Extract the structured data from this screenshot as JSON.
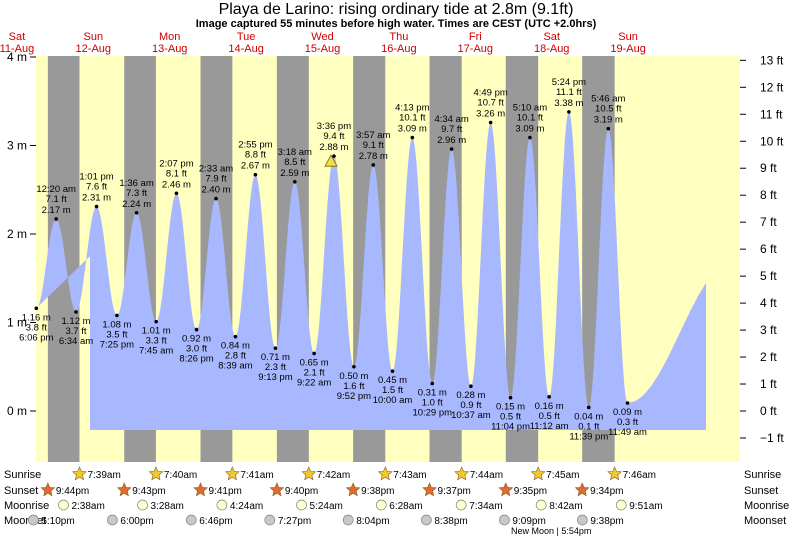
{
  "header": {
    "title": "Playa de Larino: rising  ordinary tide at 2.8m (9.1ft)",
    "subtitle": "Image captured 55 minutes before high water. Times are CEST (UTC +2.0hrs)"
  },
  "colors": {
    "day": "#ffffc0",
    "night": "#999999",
    "water": "#a8b8ff"
  },
  "chart_data": {
    "type": "area",
    "title": "Playa de Larino: rising  ordinary tide at 2.8m (9.1ft)",
    "left_axis": {
      "unit": "m",
      "range": [
        -0.45,
        4.0
      ],
      "ticks": [
        {
          "v": 4,
          "label": "4 m"
        },
        {
          "v": 3,
          "label": "3 m"
        },
        {
          "v": 2,
          "label": "2 m"
        },
        {
          "v": 1,
          "label": "1 m"
        },
        {
          "v": 0,
          "label": "0 m"
        }
      ]
    },
    "right_axis": {
      "unit": "ft",
      "ticks": [
        "13 ft",
        "12 ft",
        "11 ft",
        "10 ft",
        "9 ft",
        "8 ft",
        "7 ft",
        "6 ft",
        "5 ft",
        "4 ft",
        "3 ft",
        "2 ft",
        "1 ft",
        "0 ft",
        "−1 ft"
      ]
    },
    "days": [
      {
        "dow": "Sat",
        "date": "11-Aug"
      },
      {
        "dow": "Sun",
        "date": "12-Aug"
      },
      {
        "dow": "Mon",
        "date": "13-Aug"
      },
      {
        "dow": "Tue",
        "date": "14-Aug"
      },
      {
        "dow": "Wed",
        "date": "15-Aug"
      },
      {
        "dow": "Thu",
        "date": "16-Aug"
      },
      {
        "dow": "Fri",
        "date": "17-Aug"
      },
      {
        "dow": "Sat",
        "date": "18-Aug"
      },
      {
        "dow": "Sun",
        "date": "19-Aug"
      }
    ],
    "tides": [
      {
        "type": "low",
        "time": "6:06 pm",
        "m": "1.16 m",
        "ft": "3.8 ft",
        "height": 1.16,
        "day": 0,
        "hour": 18.1
      },
      {
        "type": "high",
        "time": "12:20 am",
        "m": "2.17 m",
        "ft": "7.1 ft",
        "height": 2.17,
        "day": 1,
        "hour": 0.33
      },
      {
        "type": "low",
        "time": "6:34 am",
        "m": "1.12 m",
        "ft": "3.7 ft",
        "height": 1.12,
        "day": 1,
        "hour": 6.57
      },
      {
        "type": "high",
        "time": "1:01 pm",
        "m": "2.31 m",
        "ft": "7.6 ft",
        "height": 2.31,
        "day": 1,
        "hour": 13.02
      },
      {
        "type": "low",
        "time": "7:25 pm",
        "m": "1.08 m",
        "ft": "3.5 ft",
        "height": 1.08,
        "day": 1,
        "hour": 19.42
      },
      {
        "type": "high",
        "time": "1:36 am",
        "m": "2.24 m",
        "ft": "7.3 ft",
        "height": 2.24,
        "day": 2,
        "hour": 1.6
      },
      {
        "type": "low",
        "time": "7:45 am",
        "m": "1.01 m",
        "ft": "3.3 ft",
        "height": 1.01,
        "day": 2,
        "hour": 7.75
      },
      {
        "type": "high",
        "time": "2:07 pm",
        "m": "2.46 m",
        "ft": "8.1 ft",
        "height": 2.46,
        "day": 2,
        "hour": 14.12
      },
      {
        "type": "low",
        "time": "8:26 pm",
        "m": "0.92 m",
        "ft": "3.0 ft",
        "height": 0.92,
        "day": 2,
        "hour": 20.43
      },
      {
        "type": "high",
        "time": "2:33 am",
        "m": "2.40 m",
        "ft": "7.9 ft",
        "height": 2.4,
        "day": 3,
        "hour": 2.55
      },
      {
        "type": "low",
        "time": "8:39 am",
        "m": "0.84 m",
        "ft": "2.8 ft",
        "height": 0.84,
        "day": 3,
        "hour": 8.65
      },
      {
        "type": "high",
        "time": "2:55 pm",
        "m": "2.67 m",
        "ft": "8.8 ft",
        "height": 2.67,
        "day": 3,
        "hour": 14.92
      },
      {
        "type": "low",
        "time": "9:13 pm",
        "m": "0.71 m",
        "ft": "2.3 ft",
        "height": 0.71,
        "day": 3,
        "hour": 21.22
      },
      {
        "type": "high",
        "time": "3:18 am",
        "m": "2.59 m",
        "ft": "8.5 ft",
        "height": 2.59,
        "day": 4,
        "hour": 3.3
      },
      {
        "type": "low",
        "time": "9:22 am",
        "m": "0.65 m",
        "ft": "2.1 ft",
        "height": 0.65,
        "day": 4,
        "hour": 9.37
      },
      {
        "type": "high",
        "time": "3:36 pm",
        "m": "2.88 m",
        "ft": "9.4 ft",
        "height": 2.88,
        "day": 4,
        "hour": 15.6
      },
      {
        "type": "low",
        "time": "9:52 pm",
        "m": "0.50 m",
        "ft": "1.6 ft",
        "height": 0.5,
        "day": 4,
        "hour": 21.87
      },
      {
        "type": "high",
        "time": "3:57 am",
        "m": "2.78 m",
        "ft": "9.1 ft",
        "height": 2.78,
        "day": 5,
        "hour": 3.95
      },
      {
        "type": "low",
        "time": "10:00 am",
        "m": "0.45 m",
        "ft": "1.5 ft",
        "height": 0.45,
        "day": 5,
        "hour": 10.0
      },
      {
        "type": "high",
        "time": "4:13 pm",
        "m": "3.09 m",
        "ft": "10.1 ft",
        "height": 3.09,
        "day": 5,
        "hour": 16.22
      },
      {
        "type": "low",
        "time": "10:29 pm",
        "m": "0.31 m",
        "ft": "1.0 ft",
        "height": 0.31,
        "day": 5,
        "hour": 22.48
      },
      {
        "type": "high",
        "time": "4:34 am",
        "m": "2.96 m",
        "ft": "9.7 ft",
        "height": 2.96,
        "day": 6,
        "hour": 4.57
      },
      {
        "type": "low",
        "time": "10:37 am",
        "m": "0.28 m",
        "ft": "0.9 ft",
        "height": 0.28,
        "day": 6,
        "hour": 10.62
      },
      {
        "type": "high",
        "time": "4:49 pm",
        "m": "3.26 m",
        "ft": "10.7 ft",
        "height": 3.26,
        "day": 6,
        "hour": 16.82
      },
      {
        "type": "low",
        "time": "11:04 pm",
        "m": "0.15 m",
        "ft": "0.5 ft",
        "height": 0.15,
        "day": 6,
        "hour": 23.07
      },
      {
        "type": "high",
        "time": "5:10 am",
        "m": "3.09 m",
        "ft": "10.1 ft",
        "height": 3.09,
        "day": 7,
        "hour": 5.17
      },
      {
        "type": "low",
        "time": "11:12 am",
        "m": "0.16 m",
        "ft": "0.5 ft",
        "height": 0.16,
        "day": 7,
        "hour": 11.2
      },
      {
        "type": "high",
        "time": "5:24 pm",
        "m": "3.38 m",
        "ft": "11.1 ft",
        "height": 3.38,
        "day": 7,
        "hour": 17.4
      },
      {
        "type": "low",
        "time": "11:39 pm",
        "m": "0.04 m",
        "ft": "0.1 ft",
        "height": 0.04,
        "day": 7,
        "hour": 23.65
      },
      {
        "type": "high",
        "time": "5:46 am",
        "m": "3.19 m",
        "ft": "10.5 ft",
        "height": 3.19,
        "day": 8,
        "hour": 5.77
      },
      {
        "type": "low",
        "time": "11:49 am",
        "m": "0.09 m",
        "ft": "0.3 ft",
        "height": 0.09,
        "day": 8,
        "hour": 11.82
      }
    ],
    "current": {
      "day": 4,
      "hour": 14.68,
      "height": 2.8
    }
  },
  "almanac": {
    "labels": {
      "sunrise": "Sunrise",
      "sunset": "Sunset",
      "moonrise": "Moonrise",
      "moonset": "Moonset"
    },
    "sunrise": [
      {
        "day": 1,
        "hour": 7.65,
        "time": "7:39am"
      },
      {
        "day": 2,
        "hour": 7.67,
        "time": "7:40am"
      },
      {
        "day": 3,
        "hour": 7.68,
        "time": "7:41am"
      },
      {
        "day": 4,
        "hour": 7.7,
        "time": "7:42am"
      },
      {
        "day": 5,
        "hour": 7.72,
        "time": "7:43am"
      },
      {
        "day": 6,
        "hour": 7.73,
        "time": "7:44am"
      },
      {
        "day": 7,
        "hour": 7.75,
        "time": "7:45am"
      },
      {
        "day": 8,
        "hour": 7.77,
        "time": "7:46am"
      }
    ],
    "sunset": [
      {
        "day": 0,
        "hour": 21.73,
        "time": "9:44pm"
      },
      {
        "day": 1,
        "hour": 21.72,
        "time": "9:43pm"
      },
      {
        "day": 2,
        "hour": 21.68,
        "time": "9:41pm"
      },
      {
        "day": 3,
        "hour": 21.67,
        "time": "9:40pm"
      },
      {
        "day": 4,
        "hour": 21.63,
        "time": "9:38pm"
      },
      {
        "day": 5,
        "hour": 21.62,
        "time": "9:37pm"
      },
      {
        "day": 6,
        "hour": 21.58,
        "time": "9:35pm"
      },
      {
        "day": 7,
        "hour": 21.57,
        "time": "9:34pm"
      }
    ],
    "moonrise": [
      {
        "day": 1,
        "hour": 2.63,
        "time": "2:38am"
      },
      {
        "day": 2,
        "hour": 3.47,
        "time": "3:28am"
      },
      {
        "day": 3,
        "hour": 4.4,
        "time": "4:24am"
      },
      {
        "day": 4,
        "hour": 5.4,
        "time": "5:24am"
      },
      {
        "day": 5,
        "hour": 6.47,
        "time": "6:28am"
      },
      {
        "day": 6,
        "hour": 7.57,
        "time": "7:34am"
      },
      {
        "day": 7,
        "hour": 8.7,
        "time": "8:42am"
      },
      {
        "day": 8,
        "hour": 9.85,
        "time": "9:51am"
      }
    ],
    "moonset": [
      {
        "day": 0,
        "hour": 17.17,
        "time": "5:10pm"
      },
      {
        "day": 1,
        "hour": 18.0,
        "time": "6:00pm"
      },
      {
        "day": 2,
        "hour": 18.77,
        "time": "6:46pm"
      },
      {
        "day": 3,
        "hour": 19.45,
        "time": "7:27pm"
      },
      {
        "day": 4,
        "hour": 20.07,
        "time": "8:04pm"
      },
      {
        "day": 5,
        "hour": 20.63,
        "time": "8:38pm"
      },
      {
        "day": 6,
        "hour": 21.15,
        "time": "9:09pm"
      },
      {
        "day": 7,
        "hour": 21.63,
        "time": "9:38pm"
      }
    ],
    "new_moon": "New Moon | 5:54pm"
  }
}
